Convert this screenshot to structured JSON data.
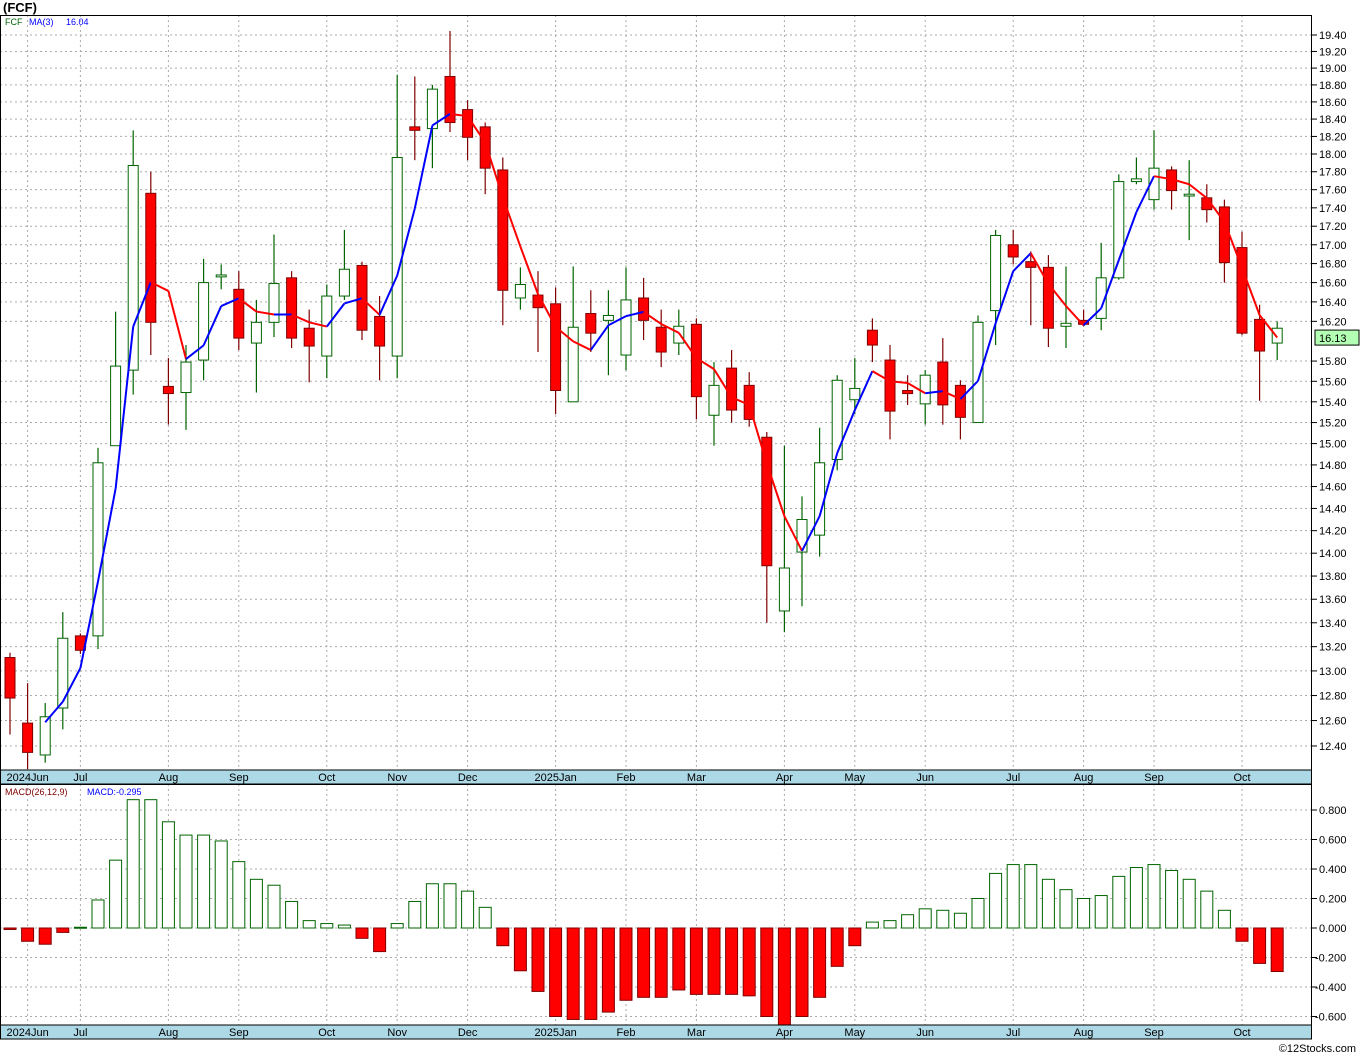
{
  "title": "(FCF)",
  "footer": "©12Stocks.com",
  "colors": {
    "up": "#006400",
    "down": "#ff0000",
    "downBorder": "#800000",
    "maUp": "#0000ff",
    "maDown": "#ff0000",
    "axisBand": "#add8e6",
    "lastPriceBox": "#b3ffb3",
    "grid": "#aaaaaa"
  },
  "chart_data": [
    {
      "type": "candlestick",
      "title": "(FCF)",
      "legend": {
        "symbol": "FCF",
        "ma_label": "MA(3)",
        "ma_value": "16.04"
      },
      "last_price": "16.13",
      "y_scale": "log",
      "ylim": [
        12.2,
        19.5
      ],
      "yticks": [
        "19.40",
        "19.20",
        "19.00",
        "18.80",
        "18.60",
        "18.40",
        "18.20",
        "18.00",
        "17.80",
        "17.60",
        "17.40",
        "17.20",
        "17.00",
        "16.80",
        "16.60",
        "16.40",
        "16.20",
        "15.80",
        "15.60",
        "15.40",
        "15.20",
        "15.00",
        "14.80",
        "14.60",
        "14.40",
        "14.20",
        "14.00",
        "13.80",
        "13.60",
        "13.40",
        "13.20",
        "13.00",
        "12.80",
        "12.60",
        "12.40"
      ],
      "month_labels": [
        {
          "label": "2024Jun",
          "index": 1
        },
        {
          "label": "Jul",
          "index": 4
        },
        {
          "label": "Aug",
          "index": 9
        },
        {
          "label": "Sep",
          "index": 13
        },
        {
          "label": "Oct",
          "index": 18
        },
        {
          "label": "Nov",
          "index": 22
        },
        {
          "label": "Dec",
          "index": 26
        },
        {
          "label": "2025Jan",
          "index": 31
        },
        {
          "label": "Feb",
          "index": 35
        },
        {
          "label": "Mar",
          "index": 39
        },
        {
          "label": "Apr",
          "index": 44
        },
        {
          "label": "May",
          "index": 48
        },
        {
          "label": "Jun",
          "index": 52
        },
        {
          "label": "Jul",
          "index": 57
        },
        {
          "label": "Aug",
          "index": 61
        },
        {
          "label": "Sep",
          "index": 65
        },
        {
          "label": "Oct",
          "index": 70
        }
      ],
      "ma_period": 3,
      "ohlc": [
        [
          13.11,
          13.15,
          12.49,
          12.78
        ],
        [
          12.58,
          12.9,
          12.22,
          12.35
        ],
        [
          12.33,
          12.74,
          12.27,
          12.63
        ],
        [
          12.7,
          13.49,
          12.53,
          13.27
        ],
        [
          13.29,
          13.31,
          13.14,
          13.17
        ],
        [
          13.29,
          14.96,
          13.18,
          14.82
        ],
        [
          14.98,
          16.3,
          14.98,
          15.75
        ],
        [
          15.71,
          18.27,
          15.47,
          17.87
        ],
        [
          17.56,
          17.8,
          15.86,
          16.19
        ],
        [
          15.55,
          15.83,
          15.18,
          15.48
        ],
        [
          15.49,
          15.96,
          15.13,
          15.79
        ],
        [
          15.81,
          16.85,
          15.61,
          16.6
        ],
        [
          16.66,
          16.79,
          16.53,
          16.68
        ],
        [
          16.53,
          16.72,
          15.91,
          16.03
        ],
        [
          15.98,
          16.42,
          15.49,
          16.19
        ],
        [
          16.19,
          17.11,
          16.04,
          16.59
        ],
        [
          16.65,
          16.72,
          15.93,
          16.03
        ],
        [
          16.13,
          16.32,
          15.59,
          15.95
        ],
        [
          15.85,
          16.58,
          15.63,
          16.46
        ],
        [
          16.46,
          17.16,
          16.42,
          16.74
        ],
        [
          16.78,
          16.82,
          16.01,
          16.11
        ],
        [
          16.25,
          16.46,
          15.61,
          15.95
        ],
        [
          15.85,
          18.92,
          15.63,
          17.96
        ],
        [
          18.31,
          18.9,
          17.93,
          18.27
        ],
        [
          18.29,
          18.8,
          17.84,
          18.75
        ],
        [
          18.9,
          19.45,
          18.25,
          18.36
        ],
        [
          18.51,
          18.62,
          17.93,
          18.19
        ],
        [
          18.31,
          18.36,
          17.55,
          17.84
        ],
        [
          17.82,
          17.96,
          16.16,
          16.52
        ],
        [
          16.44,
          16.76,
          16.32,
          16.58
        ],
        [
          16.47,
          16.72,
          15.89,
          16.34
        ],
        [
          16.38,
          16.55,
          15.28,
          15.51
        ],
        [
          15.4,
          16.77,
          15.4,
          16.14
        ],
        [
          16.28,
          16.52,
          15.89,
          16.08
        ],
        [
          16.21,
          16.52,
          15.66,
          16.26
        ],
        [
          15.86,
          16.76,
          15.71,
          16.42
        ],
        [
          16.44,
          16.65,
          16.01,
          16.21
        ],
        [
          16.14,
          16.32,
          15.74,
          15.89
        ],
        [
          15.98,
          16.32,
          15.86,
          16.15
        ],
        [
          16.17,
          16.23,
          15.23,
          15.45
        ],
        [
          15.27,
          15.79,
          14.98,
          15.56
        ],
        [
          15.73,
          15.91,
          15.2,
          15.32
        ],
        [
          15.56,
          15.69,
          15.16,
          15.23
        ],
        [
          15.06,
          15.11,
          13.4,
          13.89
        ],
        [
          13.5,
          14.98,
          13.32,
          13.87
        ],
        [
          14.01,
          14.51,
          13.54,
          14.3
        ],
        [
          14.16,
          15.15,
          13.97,
          14.82
        ],
        [
          14.85,
          15.66,
          14.75,
          15.61
        ],
        [
          15.42,
          15.83,
          15.28,
          15.53
        ],
        [
          16.11,
          16.23,
          15.79,
          15.96
        ],
        [
          15.81,
          15.96,
          15.04,
          15.31
        ],
        [
          15.51,
          15.66,
          15.37,
          15.48
        ],
        [
          15.38,
          15.71,
          15.18,
          15.66
        ],
        [
          15.79,
          16.03,
          15.18,
          15.37
        ],
        [
          15.56,
          15.61,
          15.04,
          15.25
        ],
        [
          15.2,
          16.26,
          15.2,
          16.19
        ],
        [
          16.31,
          17.16,
          15.96,
          17.1
        ],
        [
          17.0,
          17.16,
          16.79,
          16.87
        ],
        [
          16.82,
          16.93,
          16.16,
          16.76
        ],
        [
          16.76,
          16.89,
          15.94,
          16.13
        ],
        [
          16.15,
          16.77,
          15.93,
          16.18
        ],
        [
          16.21,
          16.32,
          16.15,
          16.17
        ],
        [
          16.23,
          17.02,
          16.11,
          16.65
        ],
        [
          16.65,
          17.77,
          16.63,
          17.69
        ],
        [
          17.69,
          17.96,
          17.66,
          17.72
        ],
        [
          17.49,
          18.27,
          17.38,
          17.84
        ],
        [
          17.82,
          17.86,
          17.38,
          17.59
        ],
        [
          17.53,
          17.93,
          17.05,
          17.55
        ],
        [
          17.51,
          17.66,
          17.24,
          17.38
        ],
        [
          17.41,
          17.49,
          16.6,
          16.81
        ],
        [
          16.97,
          17.14,
          16.06,
          16.08
        ],
        [
          16.22,
          16.37,
          15.41,
          15.9
        ],
        [
          15.98,
          16.2,
          15.81,
          16.13
        ]
      ]
    },
    {
      "type": "bar",
      "title": "MACD(26,12,9)",
      "value_label": "MACD:-0.295",
      "ylim": [
        -0.68,
        0.95
      ],
      "yticks": [
        "0.800",
        "0.600",
        "0.400",
        "0.200",
        "0.000",
        "-0.200",
        "-0.400",
        "-0.600"
      ],
      "ytick_values": [
        0.8,
        0.6,
        0.4,
        0.2,
        0,
        -0.2,
        -0.4,
        -0.6
      ],
      "values": [
        -0.01,
        -0.09,
        -0.11,
        -0.03,
        0.005,
        0.19,
        0.46,
        0.87,
        0.87,
        0.72,
        0.63,
        0.63,
        0.59,
        0.45,
        0.33,
        0.29,
        0.18,
        0.05,
        0.03,
        0.02,
        -0.07,
        -0.16,
        0.03,
        0.18,
        0.3,
        0.3,
        0.25,
        0.14,
        -0.12,
        -0.29,
        -0.43,
        -0.6,
        -0.62,
        -0.62,
        -0.57,
        -0.49,
        -0.47,
        -0.47,
        -0.42,
        -0.45,
        -0.45,
        -0.45,
        -0.46,
        -0.6,
        -0.66,
        -0.6,
        -0.47,
        -0.26,
        -0.12,
        0.04,
        0.05,
        0.09,
        0.13,
        0.12,
        0.1,
        0.2,
        0.37,
        0.43,
        0.43,
        0.33,
        0.26,
        0.2,
        0.22,
        0.35,
        0.41,
        0.43,
        0.39,
        0.33,
        0.25,
        0.12,
        -0.09,
        -0.24,
        -0.295
      ]
    }
  ]
}
